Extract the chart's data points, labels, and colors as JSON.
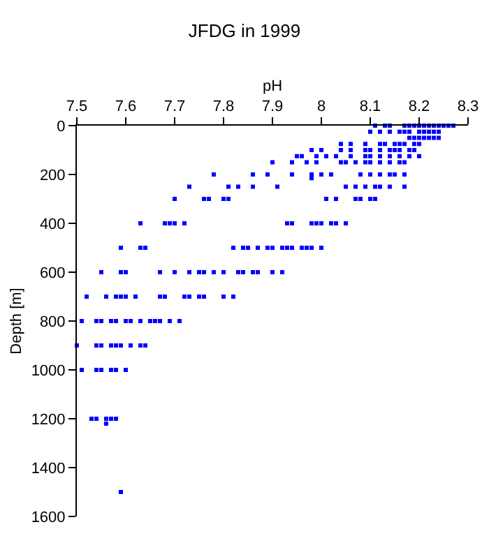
{
  "chart_data": {
    "type": "scatter",
    "title": "JFDG in 1999",
    "xlabel": "pH",
    "ylabel": "Depth [m]",
    "xlim": [
      7.5,
      8.3
    ],
    "xticks": [
      7.5,
      7.6,
      7.7,
      7.8,
      7.9,
      8,
      8.1,
      8.2,
      8.3
    ],
    "ylim": [
      1600,
      0
    ],
    "yticks": [
      0,
      200,
      400,
      600,
      800,
      1000,
      1200,
      1400,
      1600
    ],
    "marker": "square",
    "series": [
      {
        "color": "#0000ff",
        "x": [
          8.11,
          8.13,
          8.14,
          8.17,
          8.18,
          8.19,
          8.2,
          8.21,
          8.22,
          8.23,
          8.24,
          8.25,
          8.26,
          8.27,
          8.1,
          8.12,
          8.14,
          8.16,
          8.17,
          8.18,
          8.2,
          8.21,
          8.22,
          8.23,
          8.24,
          8.18,
          8.19,
          8.2,
          8.21,
          8.22,
          8.23,
          8.24,
          8.04,
          8.06,
          8.09,
          8.12,
          8.13,
          8.15,
          8.16,
          8.17,
          8.19,
          8.2,
          7.98,
          8.0,
          8.04,
          8.06,
          8.09,
          8.1,
          8.12,
          8.14,
          8.15,
          8.16,
          8.18,
          8.19,
          7.95,
          7.96,
          7.99,
          8.01,
          8.03,
          8.06,
          8.09,
          8.1,
          8.12,
          8.14,
          8.16,
          8.18,
          8.2,
          7.9,
          7.94,
          7.97,
          7.99,
          8.04,
          8.05,
          8.07,
          8.09,
          8.1,
          8.12,
          8.14,
          8.16,
          8.17,
          7.78,
          7.86,
          7.89,
          7.94,
          7.98,
          8.0,
          8.02,
          8.08,
          8.1,
          8.12,
          8.14,
          8.15,
          8.17,
          7.98,
          7.73,
          7.81,
          7.83,
          7.86,
          7.91,
          8.05,
          8.07,
          8.09,
          8.11,
          8.12,
          8.14,
          8.17,
          7.7,
          7.76,
          7.77,
          7.8,
          7.81,
          8.01,
          8.03,
          8.07,
          8.08,
          8.1,
          8.11,
          7.63,
          7.68,
          7.69,
          7.7,
          7.72,
          7.93,
          7.94,
          7.98,
          7.99,
          8.0,
          8.02,
          8.03,
          8.05,
          7.59,
          7.63,
          7.64,
          7.82,
          7.84,
          7.85,
          7.87,
          7.89,
          7.9,
          7.92,
          7.93,
          7.94,
          7.96,
          7.97,
          7.98,
          8.0,
          7.55,
          7.59,
          7.6,
          7.67,
          7.7,
          7.73,
          7.75,
          7.76,
          7.78,
          7.8,
          7.83,
          7.84,
          7.86,
          7.87,
          7.9,
          7.92,
          7.52,
          7.56,
          7.58,
          7.59,
          7.6,
          7.62,
          7.67,
          7.68,
          7.72,
          7.73,
          7.75,
          7.76,
          7.8,
          7.82,
          7.51,
          7.54,
          7.55,
          7.57,
          7.58,
          7.6,
          7.61,
          7.63,
          7.65,
          7.66,
          7.67,
          7.69,
          7.71,
          7.5,
          7.54,
          7.55,
          7.57,
          7.58,
          7.59,
          7.61,
          7.63,
          7.64,
          7.51,
          7.54,
          7.55,
          7.57,
          7.58,
          7.6,
          7.53,
          7.54,
          7.56,
          7.57,
          7.58,
          7.56,
          7.59
        ],
        "values": [
          0,
          0,
          0,
          0,
          0,
          0,
          0,
          0,
          0,
          0,
          0,
          0,
          0,
          0,
          25,
          25,
          25,
          25,
          25,
          25,
          25,
          25,
          25,
          25,
          25,
          50,
          50,
          50,
          50,
          50,
          50,
          50,
          75,
          75,
          75,
          75,
          75,
          75,
          75,
          75,
          75,
          75,
          100,
          100,
          100,
          100,
          100,
          100,
          100,
          100,
          100,
          100,
          100,
          100,
          125,
          125,
          125,
          125,
          125,
          125,
          125,
          125,
          125,
          125,
          125,
          125,
          125,
          150,
          150,
          150,
          150,
          150,
          150,
          150,
          150,
          150,
          150,
          150,
          150,
          150,
          200,
          200,
          200,
          200,
          200,
          200,
          200,
          200,
          200,
          200,
          200,
          200,
          200,
          215,
          250,
          250,
          250,
          250,
          250,
          250,
          250,
          250,
          250,
          250,
          250,
          250,
          300,
          300,
          300,
          300,
          300,
          300,
          300,
          300,
          300,
          300,
          300,
          400,
          400,
          400,
          400,
          400,
          400,
          400,
          400,
          400,
          400,
          400,
          400,
          400,
          500,
          500,
          500,
          500,
          500,
          500,
          500,
          500,
          500,
          500,
          500,
          500,
          500,
          500,
          500,
          500,
          600,
          600,
          600,
          600,
          600,
          600,
          600,
          600,
          600,
          600,
          600,
          600,
          600,
          600,
          600,
          600,
          700,
          700,
          700,
          700,
          700,
          700,
          700,
          700,
          700,
          700,
          700,
          700,
          700,
          700,
          800,
          800,
          800,
          800,
          800,
          800,
          800,
          800,
          800,
          800,
          800,
          800,
          800,
          900,
          900,
          900,
          900,
          900,
          900,
          900,
          900,
          900,
          1000,
          1000,
          1000,
          1000,
          1000,
          1000,
          1200,
          1200,
          1200,
          1200,
          1200,
          1220,
          1500
        ]
      }
    ]
  }
}
